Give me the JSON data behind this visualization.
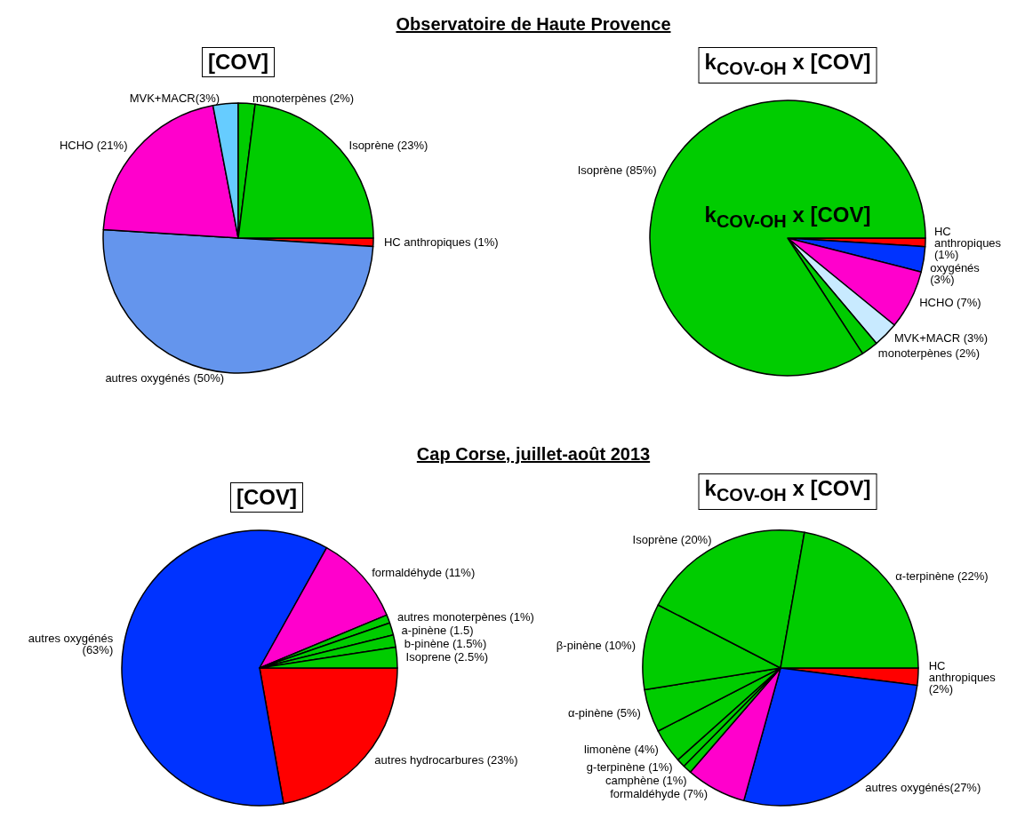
{
  "chart_data": [
    {
      "type": "pie",
      "title": "Observatoire de Haute Provence",
      "subtitle": "[COV]",
      "categories": [
        "HC anthropiques (1%)",
        "autres oxygénés (50%)",
        "HCHO (21%)",
        "MVK+MACR(3%)",
        "monoterpènes (2%)",
        "Isoprène (23%)"
      ],
      "values": [
        1,
        50,
        21,
        3,
        2,
        23
      ],
      "colors": [
        "#ff0000",
        "#6495ed",
        "#ff00cc",
        "#66ccff",
        "#00cc00",
        "#00cc00"
      ],
      "legend": false
    },
    {
      "type": "pie",
      "subtitle": "k$_{COV-OH}$ x [COV]",
      "annotations": [
        "k$_{COV-OH}$ x [COV]"
      ],
      "categories": [
        "HC anthropiques (1%)",
        "oxygénés (3%)",
        "HCHO (7%)",
        "MVK+MACR (3%)",
        "monoterpènes (2%)",
        "Isoprène (85%)"
      ],
      "values": [
        1,
        3,
        7,
        3,
        2,
        85
      ],
      "colors": [
        "#ff0000",
        "#0033ff",
        "#ff00cc",
        "#c8eaff",
        "#00cc00",
        "#00cc00"
      ],
      "legend": false
    },
    {
      "type": "pie",
      "title": "Cap Corse, juillet-août 2013",
      "subtitle": "[COV]",
      "categories": [
        "autres hydrocarbures (23%)",
        "autres oxygénés (63%)",
        "formaldéhyde (11%)",
        "autres monoterpènes (1%)",
        "a-pinène (1.5)",
        "b-pinène (1.5%)",
        "Isoprene (2.5%)"
      ],
      "values": [
        23,
        63,
        11,
        1,
        1.5,
        1.5,
        2.5
      ],
      "colors": [
        "#ff0000",
        "#0033ff",
        "#ff00cc",
        "#00cc00",
        "#00cc00",
        "#00cc00",
        "#00cc00"
      ],
      "legend": false
    },
    {
      "type": "pie",
      "subtitle": "k$_{COV-OH}$ x [COV]",
      "categories": [
        "HC anthropiques (2%)",
        "autres oxygénés(27%)",
        "formaldéhyde (7%)",
        "camphène (1%)",
        "g-terpinène (1%)",
        "limonène (4%)",
        "α-pinène (5%)",
        "β-pinène (10%)",
        "Isoprène (20%)",
        "α-terpinène (22%)"
      ],
      "values": [
        2,
        27,
        7,
        1,
        1,
        4,
        5,
        10,
        20,
        22
      ],
      "colors": [
        "#ff0000",
        "#0033ff",
        "#ff00cc",
        "#00cc00",
        "#00cc00",
        "#00cc00",
        "#00cc00",
        "#00cc00",
        "#00cc00",
        "#00cc00"
      ],
      "legend": false
    }
  ]
}
